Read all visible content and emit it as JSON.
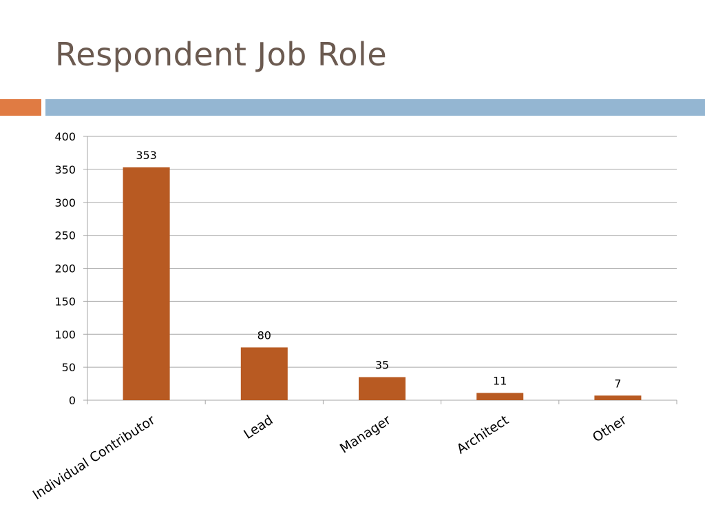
{
  "title": "Respondent Job Role",
  "colors": {
    "title": "#6b5a50",
    "accent_orange": "#e07b43",
    "accent_blue": "#94b6d2",
    "bar": "#b85a22",
    "grid": "#a6a6a6"
  },
  "chart_data": {
    "type": "bar",
    "title": "",
    "xlabel": "",
    "ylabel": "",
    "categories": [
      "Individual Contributor",
      "Lead",
      "Manager",
      "Architect",
      "Other"
    ],
    "values": [
      353,
      80,
      35,
      11,
      7
    ],
    "ylim": [
      0,
      400
    ],
    "yticks": [
      0,
      50,
      100,
      150,
      200,
      250,
      300,
      350,
      400
    ],
    "grid": true,
    "data_labels": true,
    "legend": "none"
  }
}
